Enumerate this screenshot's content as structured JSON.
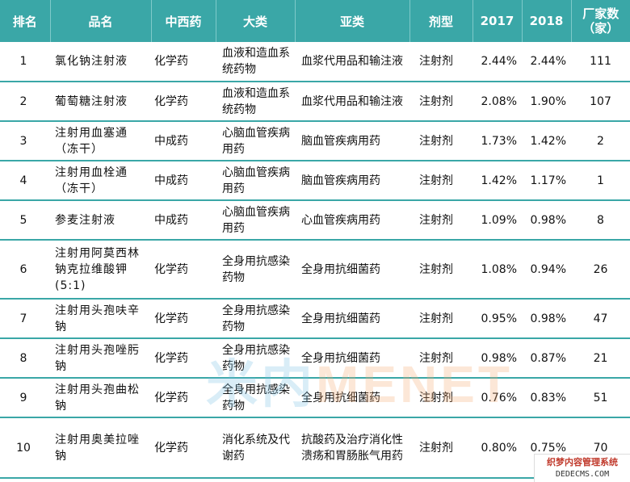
{
  "table": {
    "headers": [
      "排名",
      "品名",
      "中西药",
      "大类",
      "亚类",
      "剂型",
      "2017",
      "2018",
      "厂家数（家）"
    ],
    "rows": [
      {
        "rank": "1",
        "name": "氯化钠注射液",
        "kind": "化学药",
        "category": "血液和造血系统药物",
        "subcategory": "血浆代用品和输注液",
        "form": "注射剂",
        "y2017": "2.44%",
        "y2018": "2.44%",
        "makers": "111"
      },
      {
        "rank": "2",
        "name": "葡萄糖注射液",
        "kind": "化学药",
        "category": "血液和造血系统药物",
        "subcategory": "血浆代用品和输注液",
        "form": "注射剂",
        "y2017": "2.08%",
        "y2018": "1.90%",
        "makers": "107"
      },
      {
        "rank": "3",
        "name": "注射用血塞通（冻干）",
        "kind": "中成药",
        "category": "心脑血管疾病用药",
        "subcategory": "脑血管疾病用药",
        "form": "注射剂",
        "y2017": "1.73%",
        "y2018": "1.42%",
        "makers": "2"
      },
      {
        "rank": "4",
        "name": "注射用血栓通（冻干）",
        "kind": "中成药",
        "category": "心脑血管疾病用药",
        "subcategory": "脑血管疾病用药",
        "form": "注射剂",
        "y2017": "1.42%",
        "y2018": "1.17%",
        "makers": "1"
      },
      {
        "rank": "5",
        "name": "参麦注射液",
        "kind": "中成药",
        "category": "心脑血管疾病用药",
        "subcategory": "心血管疾病用药",
        "form": "注射剂",
        "y2017": "1.09%",
        "y2018": "0.98%",
        "makers": "8"
      },
      {
        "rank": "6",
        "name": "注射用阿莫西林钠克拉维酸钾(5:1)",
        "kind": "化学药",
        "category": "全身用抗感染药物",
        "subcategory": "全身用抗细菌药",
        "form": "注射剂",
        "y2017": "1.08%",
        "y2018": "0.94%",
        "makers": "26"
      },
      {
        "rank": "7",
        "name": "注射用头孢呋辛钠",
        "kind": "化学药",
        "category": "全身用抗感染药物",
        "subcategory": "全身用抗细菌药",
        "form": "注射剂",
        "y2017": "0.95%",
        "y2018": "0.98%",
        "makers": "47"
      },
      {
        "rank": "8",
        "name": "注射用头孢唑肟钠",
        "kind": "化学药",
        "category": "全身用抗感染药物",
        "subcategory": "全身用抗细菌药",
        "form": "注射剂",
        "y2017": "0.98%",
        "y2018": "0.87%",
        "makers": "21"
      },
      {
        "rank": "9",
        "name": "注射用头孢曲松钠",
        "kind": "化学药",
        "category": "全身用抗感染药物",
        "subcategory": "全身用抗细菌药",
        "form": "注射剂",
        "y2017": "0.76%",
        "y2018": "0.83%",
        "makers": "51"
      },
      {
        "rank": "10",
        "name": "注射用奥美拉唑钠",
        "kind": "化学药",
        "category": "消化系统及代谢药",
        "subcategory": "抗酸药及治疗消化性溃疡和胃肠胀气用药",
        "form": "注射剂",
        "y2017": "0.80%",
        "y2018": "0.75%",
        "makers": "70"
      }
    ]
  },
  "watermark": {
    "part1": "米内",
    "part2": "MENET"
  },
  "corner_logo": {
    "line1": "织梦内容管理系统",
    "line2": "DEDECMS.COM"
  },
  "colors": {
    "header_bg": "#3aa7a7",
    "header_text": "#ffffff",
    "row_border": "#3aa7a7"
  }
}
